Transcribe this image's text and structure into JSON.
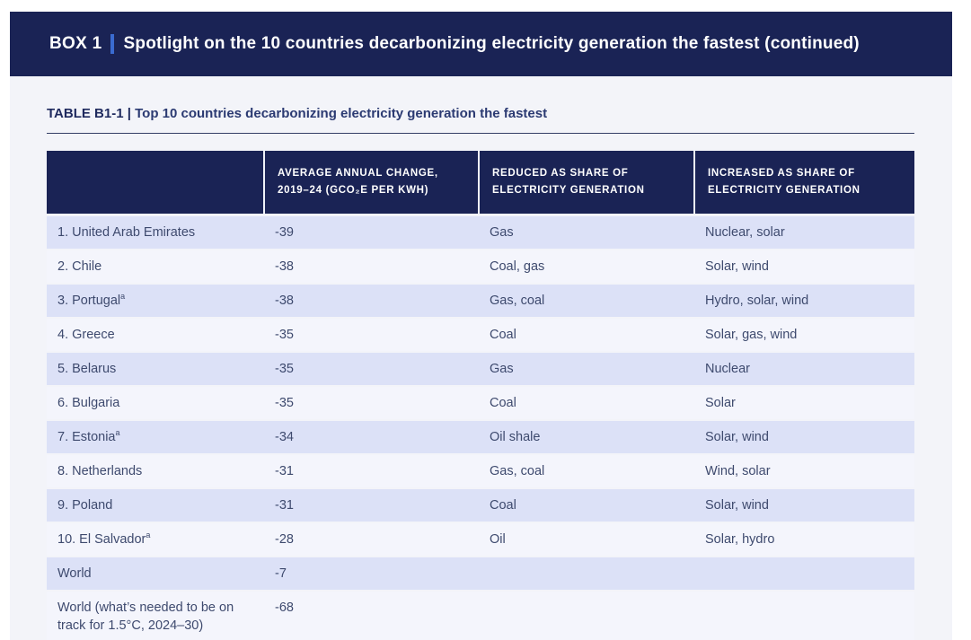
{
  "banner": {
    "label": "BOX 1",
    "title": "Spotlight on the 10 countries decarbonizing electricity generation the fastest (continued)"
  },
  "table_title": {
    "label": "TABLE B1-1 |",
    "text": "Top 10 countries decarbonizing electricity generation the fastest"
  },
  "table": {
    "columns": [
      "",
      "AVERAGE ANNUAL CHANGE, 2019–24 (GCO₂E PER KWH)",
      "REDUCED AS SHARE OF ELECTRICITY GENERATION",
      "INCREASED AS SHARE OF ELECTRICITY GENERATION"
    ],
    "rows": [
      {
        "country": "1. United Arab Emirates",
        "sup": "",
        "change": "-39",
        "reduced": "Gas",
        "increased": "Nuclear, solar"
      },
      {
        "country": "2. Chile",
        "sup": "",
        "change": "-38",
        "reduced": "Coal, gas",
        "increased": "Solar, wind"
      },
      {
        "country": "3. Portugal",
        "sup": "a",
        "change": "-38",
        "reduced": "Gas, coal",
        "increased": "Hydro, solar, wind"
      },
      {
        "country": "4. Greece",
        "sup": "",
        "change": "-35",
        "reduced": "Coal",
        "increased": "Solar, gas, wind"
      },
      {
        "country": "5. Belarus",
        "sup": "",
        "change": "-35",
        "reduced": "Gas",
        "increased": "Nuclear"
      },
      {
        "country": "6. Bulgaria",
        "sup": "",
        "change": "-35",
        "reduced": "Coal",
        "increased": "Solar"
      },
      {
        "country": "7. Estonia",
        "sup": "a",
        "change": "-34",
        "reduced": "Oil shale",
        "increased": "Solar, wind"
      },
      {
        "country": "8. Netherlands",
        "sup": "",
        "change": "-31",
        "reduced": "Gas, coal",
        "increased": "Wind, solar"
      },
      {
        "country": "9. Poland",
        "sup": "",
        "change": "-31",
        "reduced": "Coal",
        "increased": "Solar, wind"
      },
      {
        "country": "10. El Salvador",
        "sup": "a",
        "change": "-28",
        "reduced": "Oil",
        "increased": "Solar, hydro"
      },
      {
        "country": "World",
        "sup": "",
        "change": "-7",
        "reduced": "",
        "increased": ""
      },
      {
        "country": "World (what’s needed to be on track for 1.5°C, 2024–30)",
        "sup": "",
        "change": "-68",
        "reduced": "",
        "increased": ""
      }
    ]
  },
  "colors": {
    "navy": "#1a2355",
    "accent_bar": "#3a6bd1",
    "row_stripe": "#dce1f7",
    "row_light": "#f4f5fc",
    "content_bg": "#f3f4f9",
    "body_text": "#3e4a6e"
  }
}
